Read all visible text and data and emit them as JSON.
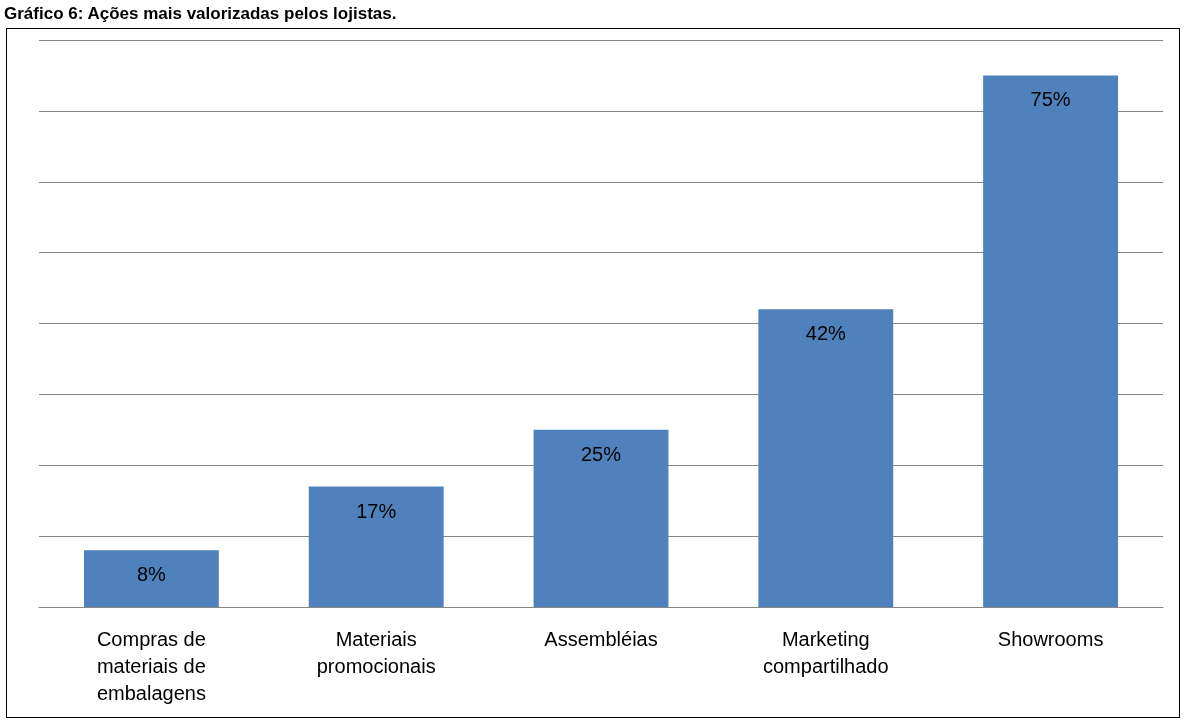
{
  "chart_data": {
    "type": "bar",
    "title": "Gráfico 6: Ações mais valorizadas pelos lojistas.",
    "categories": [
      "Compras de\nmateriais de\nembalagens",
      "Materiais\npromocionais",
      "Assembléias",
      "Marketing\ncompartilhado",
      "Showrooms"
    ],
    "values": [
      8,
      17,
      25,
      42,
      75
    ],
    "value_labels": [
      "8%",
      "17%",
      "25%",
      "42%",
      "75%"
    ],
    "color": "#4f81bd",
    "grid": "y",
    "tick_labels": "x"
  }
}
